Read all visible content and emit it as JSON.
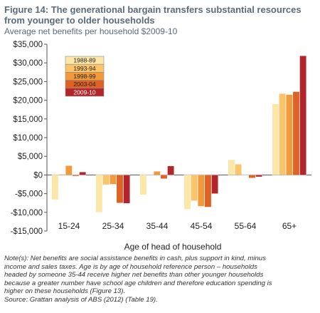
{
  "title_lines": [
    "Figure 14: The generational bargain transfers substantial resources",
    "from younger to older households"
  ],
  "subtitle": "Average net benefits per household $2009-10",
  "notes_lines": [
    "Note(s): Net benefits are social assistance benefits in cash, plus support in kind, minus",
    "income and sales taxes. Age is by age of household reference person – households",
    "headed by someone 35-44 receive higher net benefits than other younger households",
    "because a greater number have school age children and therefore education spending is",
    "higher on these households (Figure 13).",
    "Source: Grattan analysis of ABS (2012) (Table 19)."
  ],
  "chart_data": {
    "type": "bar",
    "xlabel": "Age of head of household",
    "ylabel": "",
    "ylim": [
      -15000,
      35000
    ],
    "yticks": [
      -15000,
      -10000,
      -5000,
      0,
      5000,
      10000,
      15000,
      20000,
      25000,
      30000,
      35000
    ],
    "ytick_labels": [
      "-$15,000",
      "-$10,000",
      "-$5,000",
      "$0",
      "$5,000",
      "$10,000",
      "$15,000",
      "$20,000",
      "$25,000",
      "$30,000",
      "$35,000"
    ],
    "grid": false,
    "legend_position": "top-left",
    "categories": [
      "15-24",
      "25-34",
      "35-44",
      "45-54",
      "55-64",
      "65+"
    ],
    "series": [
      {
        "name": "1988-89",
        "color": "#fde7a8",
        "values": [
          -6600,
          -10000,
          -5300,
          -9200,
          4100,
          19000
        ]
      },
      {
        "name": "1993-94",
        "color": "#fcc46a",
        "values": [
          200,
          -2600,
          100,
          -6900,
          2900,
          21800
        ]
      },
      {
        "name": "1998-99",
        "color": "#f29a3a",
        "values": [
          2500,
          -2500,
          1000,
          -8400,
          -100,
          21500
        ]
      },
      {
        "name": "2003-04",
        "color": "#de6226",
        "values": [
          -300,
          -7500,
          -1000,
          -8600,
          -800,
          22300
        ]
      },
      {
        "name": "2009-10",
        "color": "#b2262b",
        "values": [
          800,
          -7600,
          2400,
          -5000,
          -500,
          31900
        ]
      }
    ]
  }
}
